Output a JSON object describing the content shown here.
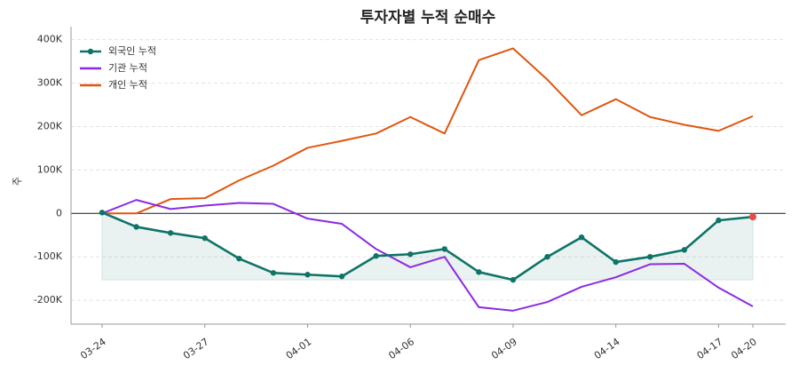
{
  "chart_data": {
    "type": "line",
    "title": "투자자별 누적 순매수",
    "ylabel": "주",
    "categories": [
      "03-24",
      null,
      null,
      "03-27",
      null,
      null,
      "04-01",
      null,
      null,
      "04-06",
      null,
      null,
      "04-09",
      null,
      null,
      "04-14",
      null,
      null,
      "04-17",
      "04-20"
    ],
    "series": [
      {
        "name": "외국인 누적",
        "color": "#0f7468",
        "values": [
          2000,
          -31000,
          -45000,
          -57000,
          -104000,
          -137000,
          -141000,
          -145000,
          -98000,
          -94000,
          -82000,
          -135000,
          -153000,
          -100000,
          -55000,
          -112000,
          -100000,
          -84000,
          -16000,
          -8000
        ]
      },
      {
        "name": "기관 누적",
        "color": "#8b2be2",
        "values": [
          0,
          31000,
          10000,
          18000,
          24000,
          22000,
          -12000,
          -24000,
          -82000,
          -124000,
          -100000,
          -216000,
          -224000,
          -204000,
          -169000,
          -147000,
          -117000,
          -116000,
          -171000,
          -214000
        ]
      },
      {
        "name": "개인 누적",
        "color": "#e0560f",
        "values": [
          0,
          0,
          33000,
          35000,
          76000,
          110000,
          151000,
          167000,
          184000,
          222000,
          184000,
          353000,
          380000,
          308000,
          226000,
          263000,
          222000,
          204000,
          190000,
          224000
        ]
      }
    ],
    "ylim": [
      -255000,
      430000
    ],
    "yticks": [
      {
        "value": -200000,
        "label": "-200K"
      },
      {
        "value": -100000,
        "label": "-100K"
      },
      0,
      {
        "value": 100000,
        "label": "100K"
      },
      {
        "value": 200000,
        "label": "200K"
      },
      {
        "value": 300000,
        "label": "300K"
      },
      {
        "value": 400000,
        "label": "400K"
      }
    ],
    "grid": true,
    "legend": "upper-left",
    "last_marker_color": "#e84a4a"
  }
}
